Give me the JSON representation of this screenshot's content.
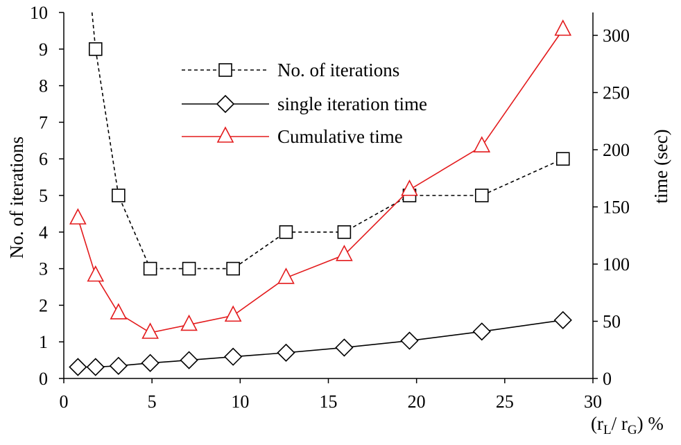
{
  "chart_data": {
    "type": "line",
    "xlabel_main": "(r",
    "xlabel_sub1": "L",
    "xlabel_mid": "/ r",
    "xlabel_sub2": "G",
    "xlabel_end": ") %",
    "ylabel_left": "No. of iterations",
    "ylabel_right": "time (sec)",
    "xlim": [
      0,
      30
    ],
    "ylim_left": [
      0,
      10
    ],
    "ylim_right": [
      0,
      320
    ],
    "x_ticks": [
      "0",
      "5",
      "10",
      "15",
      "20",
      "25",
      "30"
    ],
    "y_ticks_left": [
      "0",
      "1",
      "2",
      "3",
      "4",
      "5",
      "6",
      "7",
      "8",
      "9",
      "10"
    ],
    "y_ticks_right": [
      "0",
      "50",
      "100",
      "150",
      "200",
      "250",
      "300"
    ],
    "grid": false,
    "legend_position": "top-center",
    "series": [
      {
        "name": "No. of iterations",
        "axis": "left",
        "color": "#000000",
        "line_style": "dashed",
        "marker": "square",
        "x": [
          1.8,
          3.1,
          4.9,
          7.1,
          9.6,
          12.6,
          15.9,
          19.6,
          23.7,
          28.3
        ],
        "y": [
          9,
          5,
          3,
          3,
          3,
          4,
          4,
          5,
          5,
          6
        ],
        "leading_line_from": [
          1.6,
          10
        ]
      },
      {
        "name": "single iteration time",
        "axis": "right",
        "color": "#000000",
        "line_style": "solid",
        "marker": "diamond",
        "x": [
          0.8,
          1.8,
          3.1,
          4.9,
          7.1,
          9.6,
          12.6,
          15.9,
          19.6,
          23.7,
          28.3
        ],
        "y": [
          10,
          10,
          11,
          13.5,
          16,
          19,
          22.5,
          27,
          33,
          41,
          51
        ]
      },
      {
        "name": "Cumulative time",
        "axis": "right",
        "color": "#e31a1c",
        "line_style": "solid",
        "marker": "triangle",
        "x": [
          0.8,
          1.8,
          3.1,
          4.9,
          7.1,
          9.6,
          12.6,
          15.9,
          19.6,
          23.7,
          28.3
        ],
        "y": [
          140,
          90,
          57,
          40,
          47,
          55,
          88,
          108,
          165,
          203,
          305
        ]
      }
    ]
  }
}
